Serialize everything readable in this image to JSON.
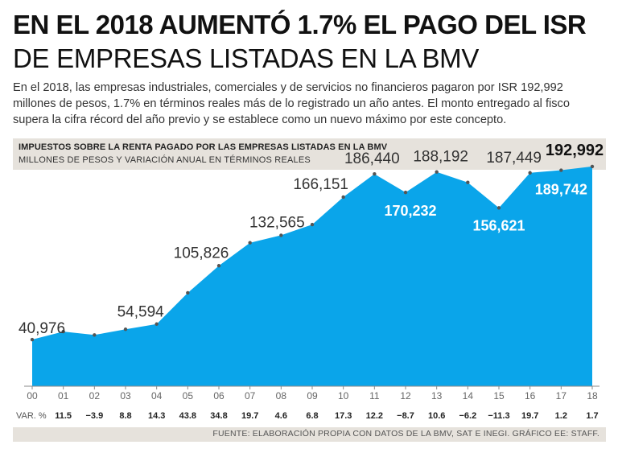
{
  "header": {
    "title_bold": "EN EL 2018 AUMENTÓ 1.7% EL PAGO DEL ISR",
    "title_light": "DE EMPRESAS LISTADAS EN LA BMV",
    "intro": "En el 2018, las empresas industriales, comerciales y de servicios no financieros pagaron por ISR 192,992 millones de pesos, 1.7% en términos reales más de lo registrado un año antes. El monto entregado al fisco supera la cifra récord del año previo y se establece como un nuevo máximo por este concepto."
  },
  "chart_header": {
    "title": "IMPUESTOS SOBRE LA RENTA PAGADO POR LAS EMPRESAS LISTADAS EN LA BMV",
    "subtitle": "MILLONES DE PESOS Y VARIACIÓN ANUAL EN TÉRMINOS REALES"
  },
  "footer": {
    "source": "FUENTE: ELABORACIÓN PROPIA CON DATOS DE LA BMV, SAT E INEGI. GRÁFICO EE: STAFF."
  },
  "colors": {
    "area": "#0aa5ea",
    "axis": "#8a8a8a",
    "label_dark": "#333333",
    "label_light": "#ffffff"
  },
  "chart_data": {
    "type": "area",
    "title": "IMPUESTOS SOBRE LA RENTA PAGADO POR LAS EMPRESAS LISTADAS EN LA BMV",
    "subtitle": "MILLONES DE PESOS Y VARIACIÓN ANUAL EN TÉRMINOS REALES",
    "x_label_prefix": "VAR. %",
    "categories": [
      "00",
      "01",
      "02",
      "03",
      "04",
      "05",
      "06",
      "07",
      "08",
      "09",
      "10",
      "11",
      "12",
      "13",
      "14",
      "15",
      "16",
      "17",
      "18"
    ],
    "values": [
      40976,
      48000,
      45000,
      50000,
      54594,
      82000,
      105826,
      126000,
      132565,
      142000,
      166151,
      186440,
      170232,
      188192,
      179000,
      156621,
      187449,
      189742,
      192992
    ],
    "var_pct": [
      "11.5",
      "-3.9",
      "8.8",
      "14.3",
      "43.8",
      "34.8",
      "19.7",
      "4.6",
      "6.8",
      "17.3",
      "12.2",
      "-8.7",
      "10.6",
      "-6.2",
      "-11.3",
      "19.7",
      "1.2",
      "1.7"
    ],
    "value_labels": [
      {
        "index": 0,
        "text": "40,976",
        "style": "dark"
      },
      {
        "index": 4,
        "text": "54,594",
        "style": "dark"
      },
      {
        "index": 6,
        "text": "105,826",
        "style": "dark"
      },
      {
        "index": 8,
        "text": "132,565",
        "style": "dark"
      },
      {
        "index": 10,
        "text": "166,151",
        "style": "dark"
      },
      {
        "index": 11,
        "text": "186,440",
        "style": "dark"
      },
      {
        "index": 12,
        "text": "170,232",
        "style": "light"
      },
      {
        "index": 13,
        "text": "188,192",
        "style": "dark"
      },
      {
        "index": 15,
        "text": "156,621",
        "style": "light"
      },
      {
        "index": 16,
        "text": "187,449",
        "style": "dark"
      },
      {
        "index": 17,
        "text": "189,742",
        "style": "light"
      },
      {
        "index": 18,
        "text": "192,992",
        "style": "bold"
      }
    ],
    "ylim": [
      0,
      200000
    ],
    "grid": false
  }
}
